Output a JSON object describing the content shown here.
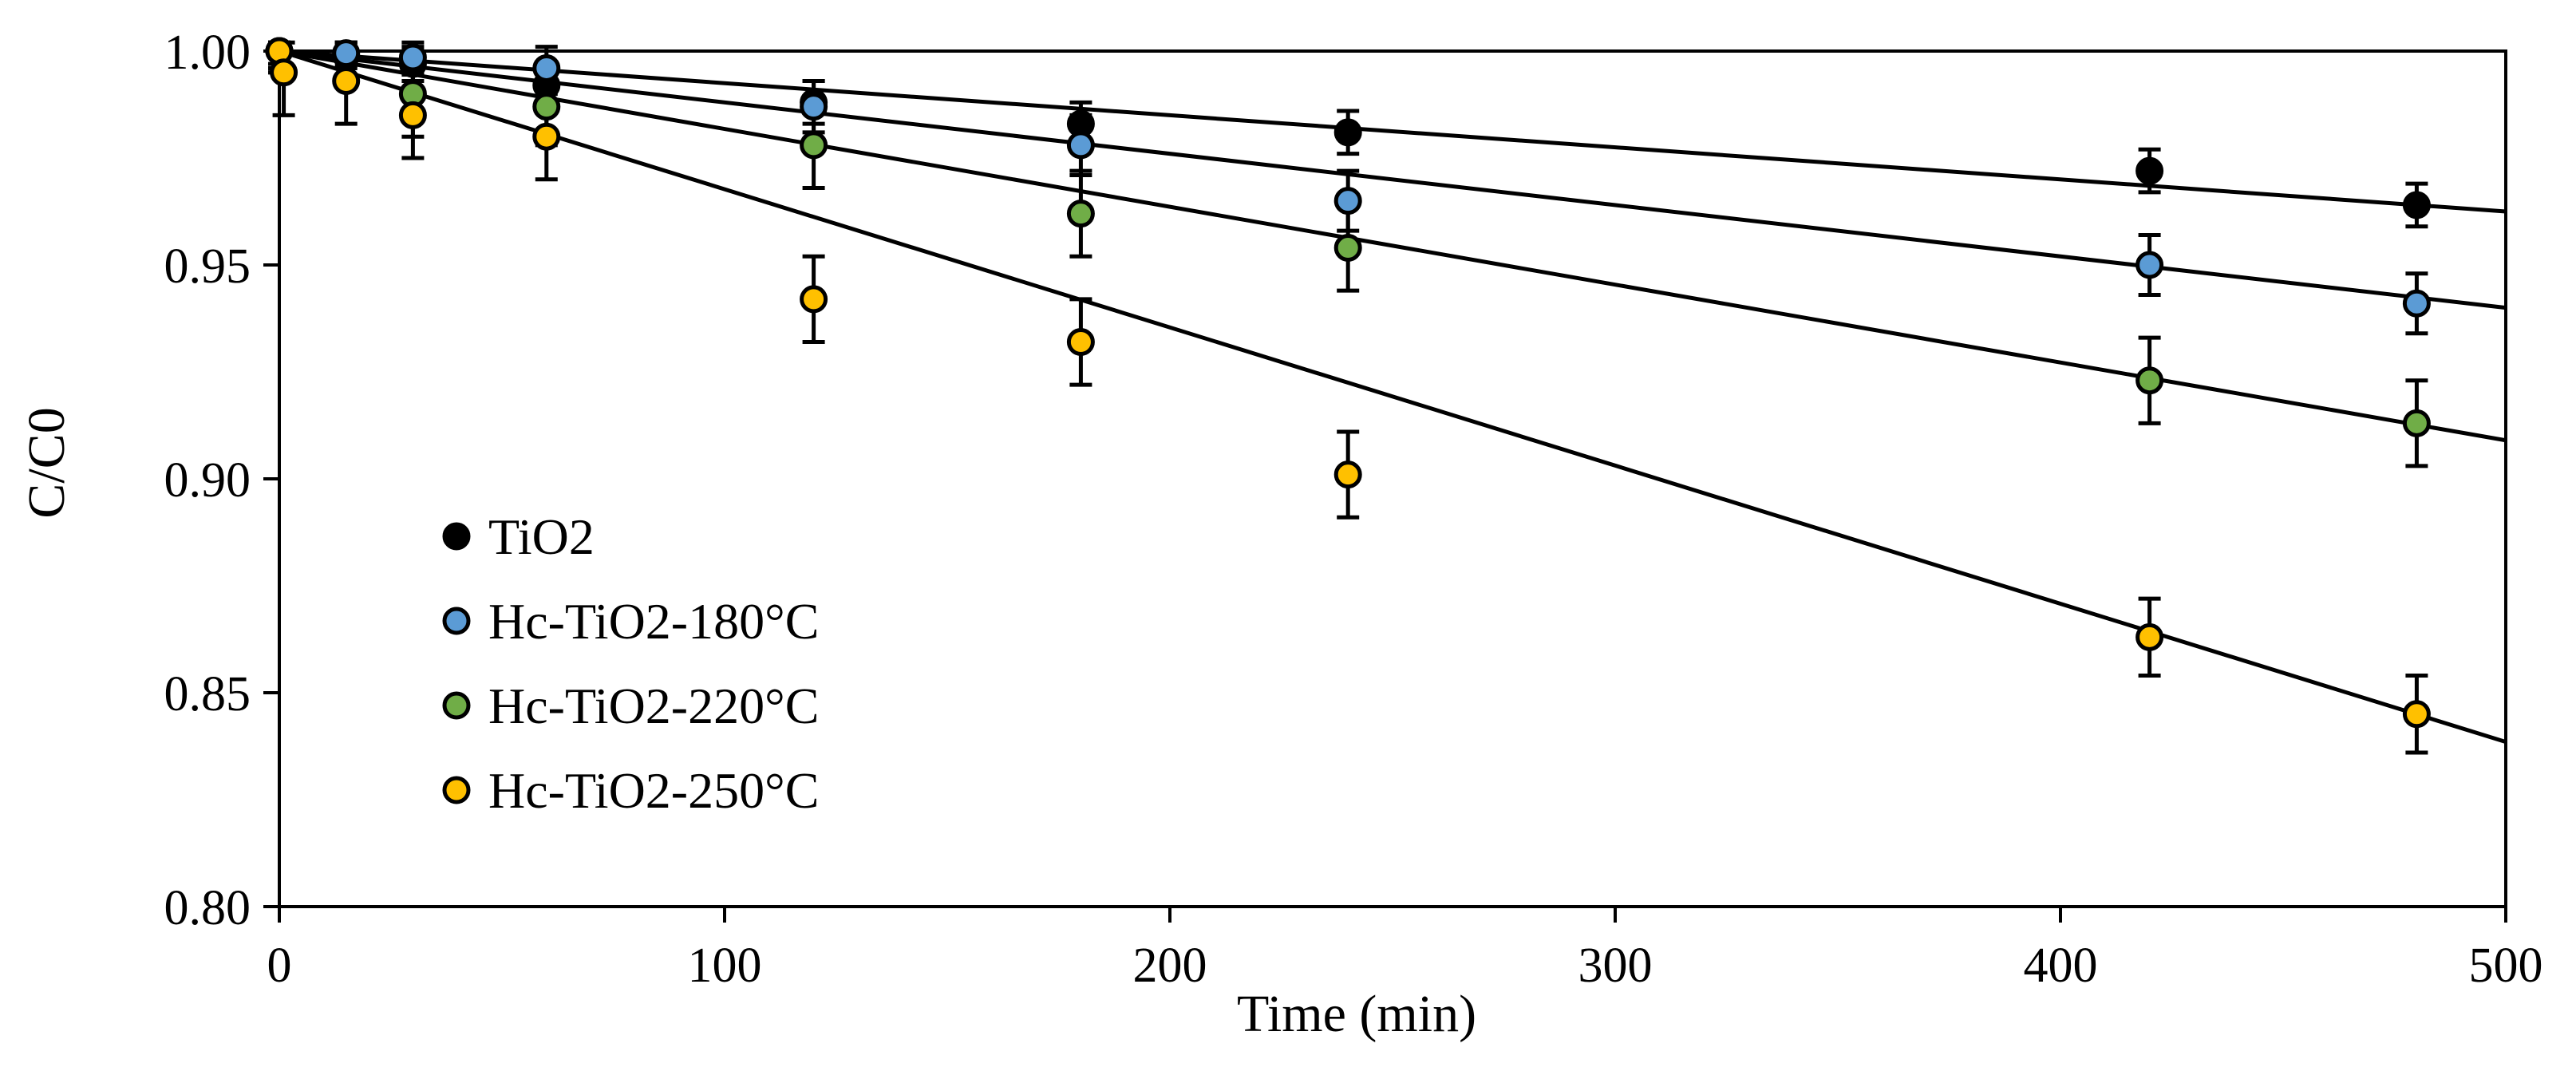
{
  "chart_data": {
    "type": "scatter",
    "title": "",
    "xlabel": "Time (min)",
    "ylabel": "C/C0",
    "xlim": [
      0,
      500
    ],
    "ylim": [
      0.8,
      1.0
    ],
    "xticks": [
      "0",
      "100",
      "200",
      "300",
      "400",
      "500"
    ],
    "yticks": [
      "0.80",
      "0.85",
      "0.90",
      "0.95",
      "1.00"
    ],
    "grid": false,
    "legend_position": "left",
    "fit_lines": "linear trendline through each series",
    "series": [
      {
        "name": "TiO2",
        "color": "#000000",
        "x": [
          0,
          15,
          30,
          60,
          120,
          180,
          240,
          420,
          480
        ],
        "y": [
          1.0,
          0.999,
          0.997,
          0.992,
          0.988,
          0.983,
          0.981,
          0.972,
          0.964
        ],
        "error": [
          0.004,
          0.003,
          0.004,
          0.005,
          0.005,
          0.005,
          0.005,
          0.005,
          0.005
        ],
        "fit": [
          1.0,
          0.9625
        ]
      },
      {
        "name": "Hc-TiO2-180°C",
        "color": "#5b9bd5",
        "x": [
          0,
          15,
          30,
          60,
          120,
          180,
          240,
          420,
          480
        ],
        "y": [
          1.0,
          0.9995,
          0.9985,
          0.996,
          0.987,
          0.978,
          0.965,
          0.95,
          0.941
        ],
        "error": [
          0.003,
          0.003,
          0.004,
          0.005,
          0.006,
          0.007,
          0.007,
          0.007,
          0.007
        ],
        "fit": [
          1.0,
          0.94
        ]
      },
      {
        "name": "Hc-TiO2-220°C",
        "color": "#70ad47",
        "x": [
          0,
          30,
          60,
          120,
          180,
          240,
          420,
          480
        ],
        "y": [
          1.0,
          0.99,
          0.987,
          0.978,
          0.962,
          0.954,
          0.923,
          0.913
        ],
        "error": [
          0.005,
          0.01,
          0.009,
          0.01,
          0.01,
          0.01,
          0.01,
          0.01
        ],
        "fit": [
          1.0,
          0.909
        ]
      },
      {
        "name": "Hc-TiO2-250°C",
        "color": "#ffc000",
        "x": [
          0,
          1,
          15,
          30,
          60,
          120,
          180,
          240,
          420,
          480
        ],
        "y": [
          1.0,
          0.995,
          0.993,
          0.985,
          0.98,
          0.942,
          0.932,
          0.901,
          0.863,
          0.845
        ],
        "error": [
          0.005,
          0.01,
          0.01,
          0.01,
          0.01,
          0.01,
          0.01,
          0.01,
          0.009,
          0.009
        ],
        "fit": [
          1.0,
          0.8385
        ]
      }
    ]
  }
}
